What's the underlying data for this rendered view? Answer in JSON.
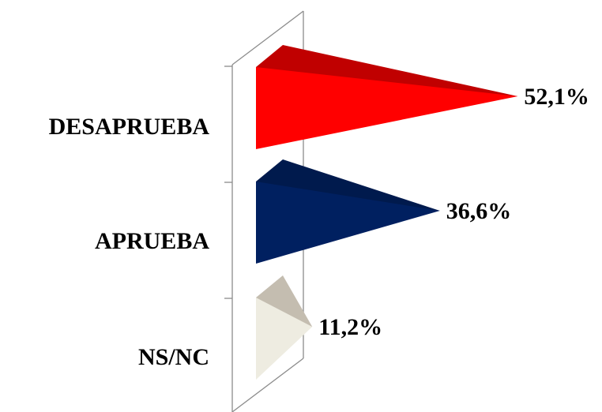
{
  "chart_data": {
    "type": "bar",
    "orientation": "horizontal",
    "style": "3d-cone",
    "categories": [
      "DESAPRUEBA",
      "APRUEBA",
      "NS/NC"
    ],
    "values": [
      52.1,
      36.6,
      11.2
    ],
    "value_labels": [
      "52,1%",
      "36,6%",
      "11,2%"
    ],
    "colors": [
      "#ff0000",
      "#002060",
      "#eeece1"
    ],
    "shade_colors": [
      "#c00000",
      "#001a4d",
      "#c4bdb0"
    ],
    "title": "",
    "xlabel": "",
    "ylabel": "",
    "grid": false,
    "legend": "none"
  }
}
